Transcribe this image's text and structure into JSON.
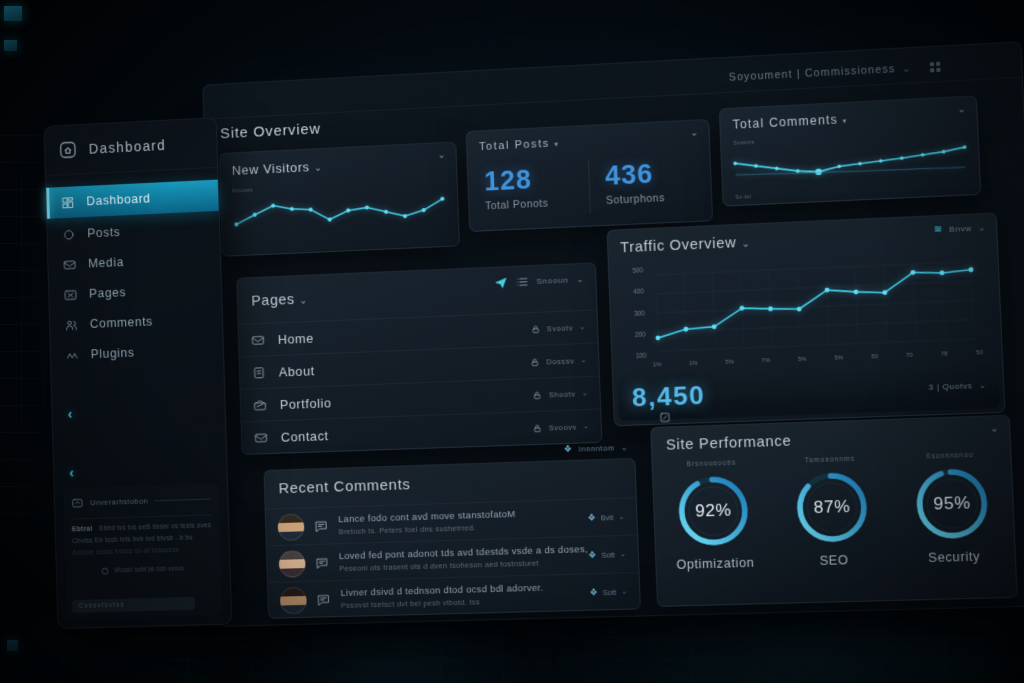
{
  "icons": {
    "caret_down": "⌄",
    "tri_down": "▾",
    "chevron_left": "‹",
    "diamond": "❖",
    "wave": "≋"
  },
  "topbar": {
    "user_label": "Soyoument | Commissioness"
  },
  "page_title": "Site Overview",
  "sidebar": {
    "brand_label": "Dashboard",
    "items": [
      {
        "label": "Dashboard",
        "active": true
      },
      {
        "label": "Posts"
      },
      {
        "label": "Media"
      },
      {
        "label": "Pages"
      },
      {
        "label": "Comments"
      },
      {
        "label": "Plugins"
      }
    ],
    "footer": {
      "mail_row": "Unverarhstobon",
      "line1_label": "Ebtral",
      "line1_text": "Ebbd tvs tvs eeB bsser vs tests ovest",
      "line2_text": "Cbvtss Eb tosb tvts bvb tvd btvsb - b bv",
      "line3_text": "Asssse sssss bssss ss-af ssssssse",
      "center_text": "Wvssh svbt bb bsb vvvvs",
      "bottom_text": "Cvssvtsvtss"
    }
  },
  "cards": {
    "new_visitors": {
      "title": "New Visitors",
      "axis_note": "Krcosts"
    },
    "totals": {
      "title": "Total Posts",
      "stats": [
        {
          "value": "128",
          "label": "Total Ponots"
        },
        {
          "value": "436",
          "label": "Soturphons"
        }
      ]
    },
    "total_comments": {
      "title": "Total Comments",
      "note_top": "Svsstrs",
      "note_bottom": "Sv-tst"
    },
    "pages": {
      "title": "Pages",
      "toolbar_label": "Snooun",
      "rows": [
        {
          "name": "Home",
          "action": "Svootv"
        },
        {
          "name": "About",
          "action": "Dosssv"
        },
        {
          "name": "Portfolio",
          "action": "Shootv"
        },
        {
          "name": "Contact",
          "action": "Svoovv"
        }
      ]
    },
    "traffic": {
      "title": "Traffic Overview",
      "top_right_label": "Bnvw",
      "big_value": "8,450",
      "bottom_right_label": "3 | Quotvs"
    },
    "recent_comments": {
      "title": "Recent Comments",
      "toolbar_label": "Innnntom",
      "rows": [
        {
          "line1": "Lance fodo cont avd move stanstofatoM",
          "line2": "Bretoch ts. Peters foel dns sushetrred.",
          "action": "Bvit"
        },
        {
          "line1": "Loved fed pont adonot tds avd tdestds vsde a ds doses,",
          "line2": "Peseoni ots trasent ots d dven tsoheson aed tostnsturet",
          "action": "Sott"
        },
        {
          "line1": "Livner dsivd d tednson dtod ocsd bdl adorver.",
          "line2": "Pssovst tsetsct dvt bel pesh vtbotd. tss",
          "action": "Sott"
        }
      ]
    },
    "performance": {
      "title": "Site Performance",
      "gauges": [
        {
          "value": 92,
          "value_label": "92%",
          "label": "Optimization",
          "sub": "Brsnousoobs"
        },
        {
          "value": 87,
          "value_label": "87%",
          "label": "SEO",
          "sub": "Tomoeonnms"
        },
        {
          "value": 95,
          "value_label": "95%",
          "label": "Security",
          "sub": "Sscnnnsnou"
        }
      ]
    }
  },
  "colors": {
    "accent_cyan": "#46cfe9",
    "accent_blue": "#3f93dc",
    "active_item_top": "#1899bc",
    "active_item_bottom": "#0a6384",
    "panel_bg": "#0e161e",
    "card_bg": "#1b2630"
  },
  "chart_data": [
    {
      "type": "line",
      "name": "new-visitors-sparkline",
      "x": [
        1,
        2,
        3,
        4,
        5,
        6,
        7,
        8,
        9,
        10,
        11,
        12
      ],
      "values": [
        35,
        52,
        68,
        60,
        57,
        36,
        52,
        56,
        46,
        36,
        46,
        66
      ],
      "ylim": [
        0,
        80
      ],
      "grid": false,
      "line_color": "#46cfe9",
      "title": "New Visitors"
    },
    {
      "type": "line",
      "name": "total-comments-sparkline",
      "x": [
        1,
        2,
        3,
        4,
        5,
        6,
        7,
        8,
        9,
        10,
        11,
        12
      ],
      "series": [
        {
          "name": "comments",
          "values": [
            58,
            50,
            42,
            34,
            30,
            40,
            44,
            48,
            52,
            57,
            62,
            70
          ]
        },
        {
          "name": "baseline",
          "values": [
            32,
            31,
            30,
            29,
            28,
            28,
            27,
            27,
            26,
            26,
            25,
            25
          ]
        }
      ],
      "ylim": [
        0,
        80
      ],
      "grid": false,
      "line_color": "#46cfe9",
      "title": "Total Comments"
    },
    {
      "type": "line",
      "name": "traffic-overview",
      "x": [
        1,
        2,
        3,
        4,
        5,
        6,
        7,
        8,
        9,
        10,
        11,
        12
      ],
      "values": [
        95,
        150,
        160,
        285,
        272,
        262,
        390,
        368,
        355,
        490,
        478,
        492
      ],
      "ylim": [
        0,
        550
      ],
      "yticks": [
        "500",
        "400",
        "300",
        "200",
        "100"
      ],
      "xticks": [
        "1%",
        "1%",
        "5%",
        "7%",
        "5%",
        "5%",
        "50",
        "70",
        "78",
        "50"
      ],
      "grid": true,
      "line_color": "#3fcfe9",
      "title": "Traffic Overview",
      "total_label": "8,450"
    }
  ]
}
